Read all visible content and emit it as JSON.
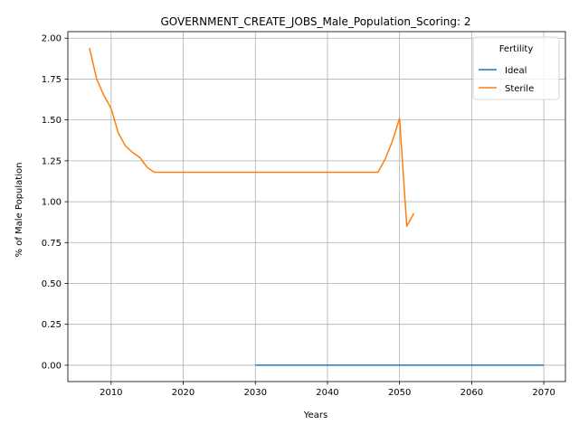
{
  "chart_data": {
    "type": "line",
    "title": "GOVERNMENT_CREATE_JOBS_Male_Population_Scoring: 2",
    "xlabel": "Years",
    "ylabel": "% of Male Population",
    "xlim": [
      2004,
      2073
    ],
    "ylim": [
      -0.1,
      2.04
    ],
    "xticks": [
      2010,
      2020,
      2030,
      2040,
      2050,
      2060,
      2070
    ],
    "yticks": [
      0.0,
      0.25,
      0.5,
      0.75,
      1.0,
      1.25,
      1.5,
      1.75,
      2.0
    ],
    "ytick_labels": [
      "0.00",
      "0.25",
      "0.50",
      "0.75",
      "1.00",
      "1.25",
      "1.50",
      "1.75",
      "2.00"
    ],
    "grid": true,
    "legend": {
      "title": "Fertility",
      "placement": "top-right"
    },
    "series": [
      {
        "name": "Ideal",
        "color": "#1f77b4",
        "x": [
          2030,
          2035,
          2040,
          2045,
          2050,
          2055,
          2060,
          2065,
          2070
        ],
        "y": [
          0,
          0,
          0,
          0,
          0,
          0,
          0,
          0,
          0
        ]
      },
      {
        "name": "Sterile",
        "color": "#ff7f0e",
        "x": [
          2007,
          2008,
          2009,
          2010,
          2011,
          2012,
          2013,
          2014,
          2015,
          2016,
          2020,
          2030,
          2040,
          2047,
          2048,
          2049,
          2050,
          2051,
          2052
        ],
        "y": [
          1.94,
          1.75,
          1.65,
          1.57,
          1.42,
          1.34,
          1.3,
          1.27,
          1.21,
          1.18,
          1.18,
          1.18,
          1.18,
          1.18,
          1.26,
          1.37,
          1.51,
          0.85,
          0.93
        ]
      }
    ]
  }
}
